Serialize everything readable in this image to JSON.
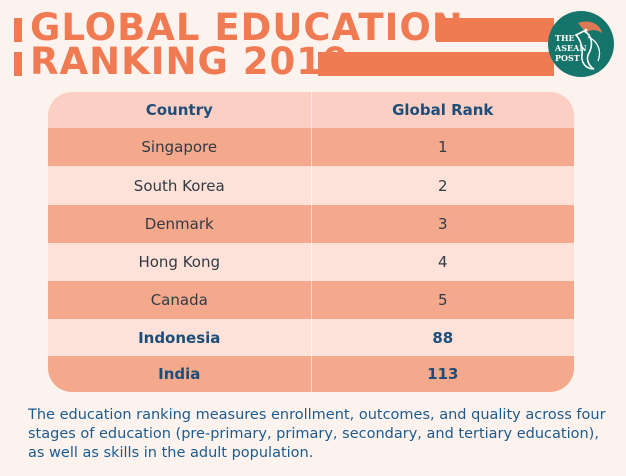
{
  "title": {
    "line1": "GLOBAL EDUCATION",
    "line2": "RANKING 2019"
  },
  "logo": {
    "line1": "THE",
    "line2": "ASEAN",
    "line3": "POST",
    "icon": "hornbill-bird-icon",
    "color": "#16756a"
  },
  "table": {
    "headers": [
      "Country",
      "Global Rank"
    ],
    "rows": [
      {
        "country": "Singapore",
        "rank": "1",
        "bold": false
      },
      {
        "country": "South Korea",
        "rank": "2",
        "bold": false
      },
      {
        "country": "Denmark",
        "rank": "3",
        "bold": false
      },
      {
        "country": "Hong Kong",
        "rank": "4",
        "bold": false
      },
      {
        "country": "Canada",
        "rank": "5",
        "bold": false
      },
      {
        "country": "Indonesia",
        "rank": "88",
        "bold": true
      },
      {
        "country": "India",
        "rank": "113",
        "bold": true
      }
    ]
  },
  "footnote": "The education ranking measures enrollment, outcomes, and quality across four stages of education (pre-primary, primary, secondary, and tertiary education), as well as skills in the adult population.",
  "colors": {
    "accent": "#f07a52",
    "row_dark": "#f4a98d",
    "row_light": "#fce2d8",
    "header_bg": "#fbcfc3",
    "text_blue": "#1d4e7a"
  }
}
